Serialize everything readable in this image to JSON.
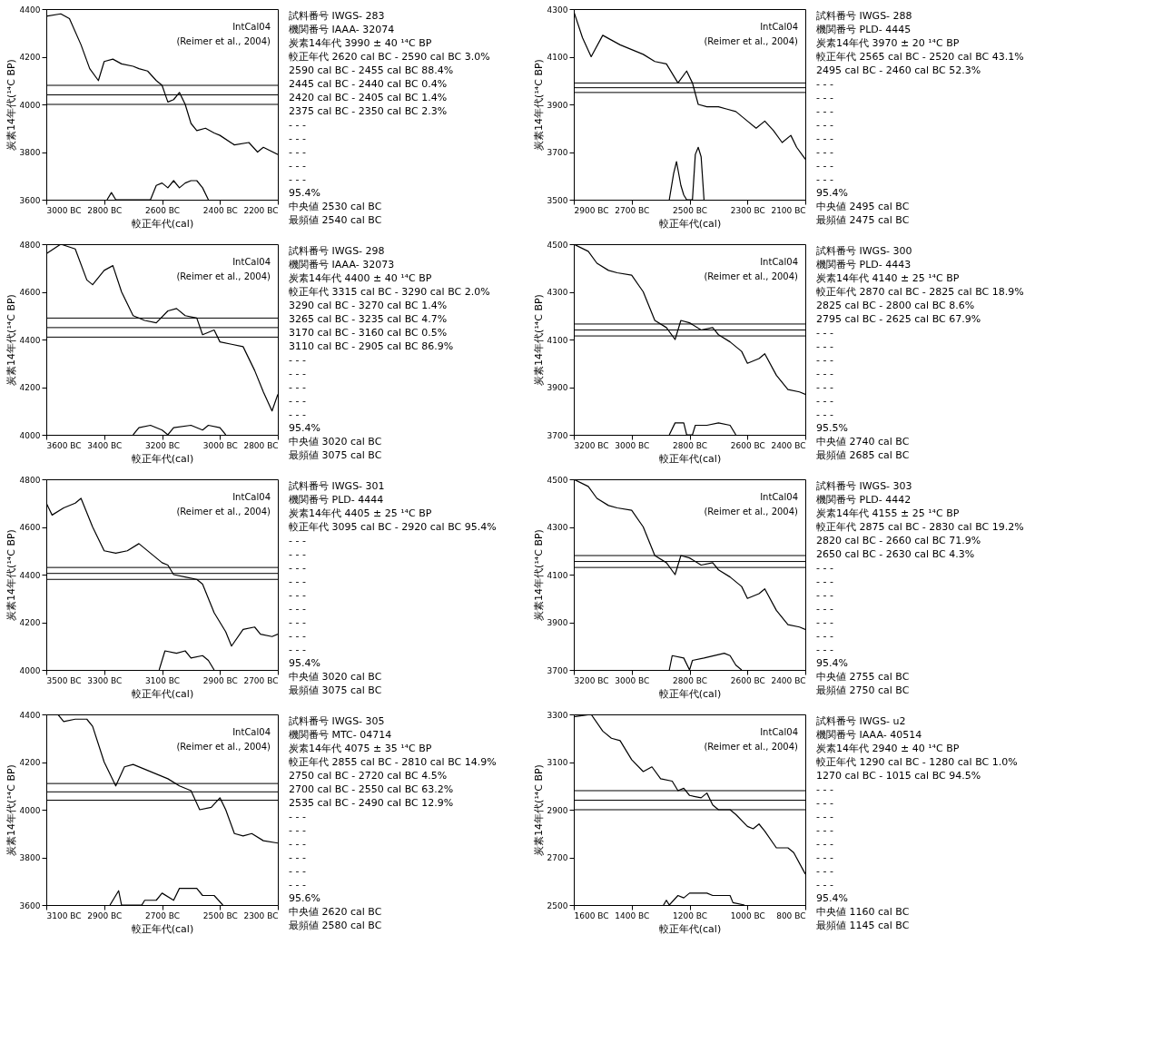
{
  "chart_data": [
    {
      "type": "line",
      "xlabel": "較正年代(cal)",
      "ylabel": "炭素14年代(¹⁴C BP)",
      "annotations": [
        "IntCal04",
        "(Reimer et al., 2004)"
      ],
      "grid": false,
      "xlim": [
        -3000,
        -2200
      ],
      "xticks": [
        {
          "value": -3000,
          "label": "3000 BC"
        },
        {
          "value": -2800,
          "label": "2800 BC"
        },
        {
          "value": -2600,
          "label": "2600 BC"
        },
        {
          "value": -2400,
          "label": "2400 BC"
        },
        {
          "value": -2200,
          "label": "2200 BC"
        }
      ],
      "ylim": [
        3600,
        4400
      ],
      "yticks": [
        3600,
        3800,
        4000,
        4200,
        4400
      ],
      "ref_lines": [
        {
          "axis": "y",
          "value": 4080
        },
        {
          "axis": "y",
          "value": 4040
        },
        {
          "axis": "y",
          "value": 4000
        }
      ],
      "series": [
        {
          "color": "#000000",
          "x": [
            -3000,
            -2950,
            -2920,
            -2880,
            -2850,
            -2820,
            -2800,
            -2770,
            -2740,
            -2700,
            -2680,
            -2650,
            -2620,
            -2600,
            -2580,
            -2560,
            -2540,
            -2520,
            -2500,
            -2480,
            -2450,
            -2420,
            -2400,
            -2350,
            -2300,
            -2270,
            -2250,
            -2200
          ],
          "values": [
            4370,
            4380,
            4360,
            4250,
            4150,
            4100,
            4180,
            4190,
            4170,
            4160,
            4150,
            4140,
            4100,
            4080,
            4010,
            4020,
            4050,
            4000,
            3920,
            3890,
            3900,
            3880,
            3870,
            3830,
            3840,
            3800,
            3820,
            3790
          ]
        },
        {
          "color": "#000000",
          "x": [
            -2790,
            -2775,
            -2760,
            -2640,
            -2620,
            -2600,
            -2580,
            -2560,
            -2540,
            -2520,
            -2500,
            -2480,
            -2460,
            -2440
          ],
          "values": [
            3600,
            3630,
            3600,
            3600,
            3660,
            3670,
            3650,
            3680,
            3650,
            3670,
            3680,
            3680,
            3650,
            3600
          ]
        }
      ]
    },
    {
      "type": "other",
      "annotations": [
        "試料番号 IWGS- 283",
        "機関番号 IAAA- 32074",
        "炭素14年代 3990 ± 40 ¹⁴C BP",
        "較正年代 2620 cal BC - 2590 cal BC 3.0%",
        "2590 cal BC - 2455 cal BC 88.4%",
        "2445 cal BC - 2440 cal BC 0.4%",
        "2420 cal BC - 2405 cal BC 1.4%",
        "2375 cal BC - 2350 cal BC 2.3%",
        "- - -",
        "- - -",
        "- - -",
        "- - -",
        "- - -",
        "95.4%",
        "中央値 2530 cal BC",
        "最頻値 2540 cal BC"
      ]
    },
    {
      "type": "line",
      "xlabel": "較正年代(cal)",
      "ylabel": "炭素14年代(¹⁴C BP)",
      "annotations": [
        "IntCal04",
        "(Reimer et al., 2004)"
      ],
      "grid": false,
      "xlim": [
        -2900,
        -2100
      ],
      "xticks": [
        {
          "value": -2900,
          "label": "2900 BC"
        },
        {
          "value": -2700,
          "label": "2700 BC"
        },
        {
          "value": -2500,
          "label": "2500 BC"
        },
        {
          "value": -2300,
          "label": "2300 BC"
        },
        {
          "value": -2100,
          "label": "2100 BC"
        }
      ],
      "ylim": [
        3500,
        4300
      ],
      "yticks": [
        3500,
        3700,
        3900,
        4100,
        4300
      ],
      "ref_lines": [
        {
          "axis": "y",
          "value": 3990
        },
        {
          "axis": "y",
          "value": 3970
        },
        {
          "axis": "y",
          "value": 3950
        }
      ],
      "series": [
        {
          "color": "#000000",
          "x": [
            -2900,
            -2870,
            -2840,
            -2800,
            -2770,
            -2740,
            -2700,
            -2660,
            -2620,
            -2580,
            -2540,
            -2510,
            -2490,
            -2470,
            -2440,
            -2400,
            -2370,
            -2340,
            -2300,
            -2270,
            -2240,
            -2210,
            -2180,
            -2150,
            -2130,
            -2100
          ],
          "values": [
            4290,
            4180,
            4100,
            4190,
            4170,
            4150,
            4130,
            4110,
            4080,
            4070,
            3990,
            4040,
            3990,
            3900,
            3890,
            3890,
            3880,
            3870,
            3830,
            3800,
            3830,
            3790,
            3740,
            3770,
            3720,
            3670
          ]
        },
        {
          "color": "#000000",
          "x": [
            -2570,
            -2555,
            -2545,
            -2530,
            -2520,
            -2510,
            -2490,
            -2480,
            -2470,
            -2460,
            -2450
          ],
          "values": [
            3500,
            3610,
            3660,
            3560,
            3520,
            3500,
            3500,
            3690,
            3720,
            3680,
            3500
          ]
        }
      ]
    },
    {
      "type": "other",
      "annotations": [
        "試料番号 IWGS- 288",
        "機関番号 PLD- 4445",
        "炭素14年代 3970 ± 20 ¹⁴C BP",
        "較正年代 2565 cal BC - 2520 cal BC 43.1%",
        "2495 cal BC - 2460 cal BC 52.3%",
        "- - -",
        "- - -",
        "- - -",
        "- - -",
        "- - -",
        "- - -",
        "- - -",
        "- - -",
        "95.4%",
        "中央値 2495 cal BC",
        "最頻値 2475 cal BC"
      ]
    },
    {
      "type": "line",
      "xlabel": "較正年代(cal)",
      "ylabel": "炭素14年代(¹⁴C BP)",
      "annotations": [
        "IntCal04",
        "(Reimer et al., 2004)"
      ],
      "grid": false,
      "xlim": [
        -3600,
        -2800
      ],
      "xticks": [
        {
          "value": -3600,
          "label": "3600 BC"
        },
        {
          "value": -3400,
          "label": "3400 BC"
        },
        {
          "value": -3200,
          "label": "3200 BC"
        },
        {
          "value": -3000,
          "label": "3000 BC"
        },
        {
          "value": -2800,
          "label": "2800 BC"
        }
      ],
      "ylim": [
        4000,
        4800
      ],
      "yticks": [
        4000,
        4200,
        4400,
        4600,
        4800
      ],
      "ref_lines": [
        {
          "axis": "y",
          "value": 4490
        },
        {
          "axis": "y",
          "value": 4450
        },
        {
          "axis": "y",
          "value": 4410
        }
      ],
      "series": [
        {
          "color": "#000000",
          "x": [
            -3600,
            -3550,
            -3500,
            -3460,
            -3440,
            -3400,
            -3370,
            -3340,
            -3300,
            -3260,
            -3220,
            -3180,
            -3150,
            -3120,
            -3080,
            -3060,
            -3020,
            -3000,
            -2960,
            -2920,
            -2880,
            -2850,
            -2820,
            -2800
          ],
          "values": [
            4760,
            4800,
            4780,
            4650,
            4630,
            4690,
            4710,
            4600,
            4500,
            4480,
            4470,
            4520,
            4530,
            4500,
            4490,
            4420,
            4440,
            4390,
            4380,
            4370,
            4270,
            4180,
            4100,
            4170
          ]
        },
        {
          "color": "#000000",
          "x": [
            -3300,
            -3280,
            -3240,
            -3200,
            -3180,
            -3160,
            -3100,
            -3060,
            -3040,
            -3000,
            -2980
          ],
          "values": [
            4000,
            4030,
            4040,
            4020,
            4000,
            4030,
            4040,
            4020,
            4040,
            4030,
            4000
          ]
        }
      ]
    },
    {
      "type": "other",
      "annotations": [
        "試料番号 IWGS- 298",
        "機関番号 IAAA- 32073",
        "炭素14年代 4400 ± 40 ¹⁴C BP",
        "較正年代 3315 cal BC - 3290 cal BC 2.0%",
        "3290 cal BC - 3270 cal BC 1.4%",
        "3265 cal BC - 3235 cal BC 4.7%",
        "3170 cal BC - 3160 cal BC 0.5%",
        "3110 cal BC - 2905 cal BC 86.9%",
        "- - -",
        "- - -",
        "- - -",
        "- - -",
        "- - -",
        "95.4%",
        "中央値 3020 cal BC",
        "最頻値 3075 cal BC"
      ]
    },
    {
      "type": "line",
      "xlabel": "較正年代(cal)",
      "ylabel": "炭素14年代(¹⁴C BP)",
      "annotations": [
        "IntCal04",
        "(Reimer et al., 2004)"
      ],
      "grid": false,
      "xlim": [
        -3200,
        -2400
      ],
      "xticks": [
        {
          "value": -3200,
          "label": "3200 BC"
        },
        {
          "value": -3000,
          "label": "3000 BC"
        },
        {
          "value": -2800,
          "label": "2800 BC"
        },
        {
          "value": -2600,
          "label": "2600 BC"
        },
        {
          "value": -2400,
          "label": "2400 BC"
        }
      ],
      "ylim": [
        3700,
        4500
      ],
      "yticks": [
        3700,
        3900,
        4100,
        4300,
        4500
      ],
      "ref_lines": [
        {
          "axis": "y",
          "value": 4165
        },
        {
          "axis": "y",
          "value": 4140
        },
        {
          "axis": "y",
          "value": 4115
        }
      ],
      "series": [
        {
          "color": "#000000",
          "x": [
            -3200,
            -3150,
            -3120,
            -3080,
            -3050,
            -3000,
            -2960,
            -2920,
            -2880,
            -2850,
            -2830,
            -2800,
            -2760,
            -2720,
            -2700,
            -2660,
            -2620,
            -2600,
            -2560,
            -2540,
            -2500,
            -2460,
            -2420,
            -2400
          ],
          "values": [
            4500,
            4470,
            4420,
            4390,
            4380,
            4370,
            4300,
            4180,
            4150,
            4100,
            4180,
            4170,
            4140,
            4150,
            4120,
            4090,
            4050,
            4000,
            4020,
            4040,
            3950,
            3890,
            3880,
            3870
          ]
        },
        {
          "color": "#000000",
          "x": [
            -2870,
            -2850,
            -2820,
            -2810,
            -2790,
            -2780,
            -2740,
            -2700,
            -2660,
            -2640
          ],
          "values": [
            3700,
            3750,
            3750,
            3700,
            3700,
            3740,
            3740,
            3750,
            3740,
            3700
          ]
        }
      ]
    },
    {
      "type": "other",
      "annotations": [
        "試料番号 IWGS- 300",
        "機関番号 PLD- 4443",
        "炭素14年代 4140 ± 25 ¹⁴C BP",
        "較正年代 2870 cal BC - 2825 cal BC 18.9%",
        "2825 cal BC - 2800 cal BC 8.6%",
        "2795 cal BC - 2625 cal BC 67.9%",
        "- - -",
        "- - -",
        "- - -",
        "- - -",
        "- - -",
        "- - -",
        "- - -",
        "95.5%",
        "中央値 2740 cal BC",
        "最頻値 2685 cal BC"
      ]
    },
    {
      "type": "line",
      "xlabel": "較正年代(cal)",
      "ylabel": "炭素14年代(¹⁴C BP)",
      "annotations": [
        "IntCal04",
        "(Reimer et al., 2004)"
      ],
      "grid": false,
      "xlim": [
        -3500,
        -2700
      ],
      "xticks": [
        {
          "value": -3500,
          "label": "3500 BC"
        },
        {
          "value": -3300,
          "label": "3300 BC"
        },
        {
          "value": -3100,
          "label": "3100 BC"
        },
        {
          "value": -2900,
          "label": "2900 BC"
        },
        {
          "value": -2700,
          "label": "2700 BC"
        }
      ],
      "ylim": [
        4000,
        4800
      ],
      "yticks": [
        4000,
        4200,
        4400,
        4600,
        4800
      ],
      "ref_lines": [
        {
          "axis": "y",
          "value": 4430
        },
        {
          "axis": "y",
          "value": 4405
        },
        {
          "axis": "y",
          "value": 4380
        }
      ],
      "series": [
        {
          "color": "#000000",
          "x": [
            -3500,
            -3480,
            -3440,
            -3400,
            -3380,
            -3340,
            -3300,
            -3260,
            -3220,
            -3180,
            -3140,
            -3100,
            -3080,
            -3060,
            -3020,
            -2980,
            -2960,
            -2920,
            -2880,
            -2860,
            -2820,
            -2780,
            -2760,
            -2720,
            -2700
          ],
          "values": [
            4700,
            4650,
            4680,
            4700,
            4720,
            4600,
            4500,
            4490,
            4500,
            4530,
            4490,
            4450,
            4440,
            4400,
            4390,
            4380,
            4360,
            4240,
            4160,
            4100,
            4170,
            4180,
            4150,
            4140,
            4150
          ]
        },
        {
          "color": "#000000",
          "x": [
            -3110,
            -3090,
            -3050,
            -3020,
            -3000,
            -2960,
            -2940,
            -2920
          ],
          "values": [
            4000,
            4080,
            4070,
            4080,
            4050,
            4060,
            4040,
            4000
          ]
        }
      ]
    },
    {
      "type": "other",
      "annotations": [
        "試料番号 IWGS- 301",
        "機関番号 PLD- 4444",
        "炭素14年代 4405 ± 25 ¹⁴C BP",
        "較正年代 3095 cal BC - 2920 cal BC 95.4%",
        "- - -",
        "- - -",
        "- - -",
        "- - -",
        "- - -",
        "- - -",
        "- - -",
        "- - -",
        "- - -",
        "95.4%",
        "中央値 3020 cal BC",
        "最頻値 3075 cal BC"
      ]
    },
    {
      "type": "line",
      "xlabel": "較正年代(cal)",
      "ylabel": "炭素14年代(¹⁴C BP)",
      "annotations": [
        "IntCal04",
        "(Reimer et al., 2004)"
      ],
      "grid": false,
      "xlim": [
        -3200,
        -2400
      ],
      "xticks": [
        {
          "value": -3200,
          "label": "3200 BC"
        },
        {
          "value": -3000,
          "label": "3000 BC"
        },
        {
          "value": -2800,
          "label": "2800 BC"
        },
        {
          "value": -2600,
          "label": "2600 BC"
        },
        {
          "value": -2400,
          "label": "2400 BC"
        }
      ],
      "ylim": [
        3700,
        4500
      ],
      "yticks": [
        3700,
        3900,
        4100,
        4300,
        4500
      ],
      "ref_lines": [
        {
          "axis": "y",
          "value": 4180
        },
        {
          "axis": "y",
          "value": 4155
        },
        {
          "axis": "y",
          "value": 4130
        }
      ],
      "series": [
        {
          "color": "#000000",
          "x": [
            -3200,
            -3150,
            -3120,
            -3080,
            -3050,
            -3000,
            -2960,
            -2920,
            -2880,
            -2850,
            -2830,
            -2800,
            -2760,
            -2720,
            -2700,
            -2660,
            -2620,
            -2600,
            -2560,
            -2540,
            -2500,
            -2460,
            -2420,
            -2400
          ],
          "values": [
            4500,
            4470,
            4420,
            4390,
            4380,
            4370,
            4300,
            4180,
            4150,
            4100,
            4180,
            4170,
            4140,
            4150,
            4120,
            4090,
            4050,
            4000,
            4020,
            4040,
            3950,
            3890,
            3880,
            3870
          ]
        },
        {
          "color": "#000000",
          "x": [
            -2870,
            -2860,
            -2820,
            -2800,
            -2790,
            -2750,
            -2680,
            -2660,
            -2640,
            -2620
          ],
          "values": [
            3700,
            3760,
            3750,
            3700,
            3740,
            3750,
            3770,
            3760,
            3720,
            3700
          ]
        }
      ]
    },
    {
      "type": "other",
      "annotations": [
        "試料番号 IWGS- 303",
        "機関番号 PLD- 4442",
        "炭素14年代 4155 ± 25 ¹⁴C BP",
        "較正年代 2875 cal BC - 2830 cal BC 19.2%",
        "2820 cal BC - 2660 cal BC 71.9%",
        "2650 cal BC - 2630 cal BC 4.3%",
        "- - -",
        "- - -",
        "- - -",
        "- - -",
        "- - -",
        "- - -",
        "- - -",
        "95.4%",
        "中央値 2755 cal BC",
        "最頻値 2750 cal BC"
      ]
    },
    {
      "type": "line",
      "xlabel": "較正年代(cal)",
      "ylabel": "炭素14年代(¹⁴C BP)",
      "annotations": [
        "IntCal04",
        "(Reimer et al., 2004)"
      ],
      "grid": false,
      "xlim": [
        -3100,
        -2300
      ],
      "xticks": [
        {
          "value": -3100,
          "label": "3100 BC"
        },
        {
          "value": -2900,
          "label": "2900 BC"
        },
        {
          "value": -2700,
          "label": "2700 BC"
        },
        {
          "value": -2500,
          "label": "2500 BC"
        },
        {
          "value": -2300,
          "label": "2300 BC"
        }
      ],
      "ylim": [
        3600,
        4400
      ],
      "yticks": [
        3600,
        3800,
        4000,
        4200,
        4400
      ],
      "ref_lines": [
        {
          "axis": "y",
          "value": 4110
        },
        {
          "axis": "y",
          "value": 4075
        },
        {
          "axis": "y",
          "value": 4040
        }
      ],
      "series": [
        {
          "color": "#000000",
          "x": [
            -3060,
            -3040,
            -3000,
            -2960,
            -2940,
            -2900,
            -2860,
            -2830,
            -2800,
            -2760,
            -2720,
            -2680,
            -2640,
            -2600,
            -2570,
            -2530,
            -2500,
            -2480,
            -2450,
            -2420,
            -2390,
            -2350,
            -2300
          ],
          "values": [
            4400,
            4370,
            4380,
            4380,
            4350,
            4200,
            4100,
            4180,
            4190,
            4170,
            4150,
            4130,
            4100,
            4080,
            4000,
            4010,
            4050,
            4000,
            3900,
            3890,
            3900,
            3870,
            3860
          ]
        },
        {
          "color": "#000000",
          "x": [
            -2880,
            -2860,
            -2850,
            -2840,
            -2770,
            -2760,
            -2720,
            -2700,
            -2660,
            -2640,
            -2580,
            -2560,
            -2520,
            -2490
          ],
          "values": [
            3600,
            3640,
            3660,
            3600,
            3600,
            3620,
            3620,
            3650,
            3620,
            3670,
            3670,
            3640,
            3640,
            3600
          ]
        }
      ]
    },
    {
      "type": "other",
      "annotations": [
        "試料番号 IWGS- 305",
        "機関番号 MTC- 04714",
        "炭素14年代 4075 ± 35 ¹⁴C BP",
        "較正年代 2855 cal BC - 2810 cal BC 14.9%",
        "2750 cal BC - 2720 cal BC 4.5%",
        "2700 cal BC - 2550 cal BC 63.2%",
        "2535 cal BC - 2490 cal BC 12.9%",
        "- - -",
        "- - -",
        "- - -",
        "- - -",
        "- - -",
        "- - -",
        "95.6%",
        "中央値 2620 cal BC",
        "最頻値 2580 cal BC"
      ]
    },
    {
      "type": "line",
      "xlabel": "較正年代(cal)",
      "ylabel": "炭素14年代(¹⁴C BP)",
      "annotations": [
        "IntCal04",
        "(Reimer et al., 2004)"
      ],
      "grid": false,
      "xlim": [
        -1600,
        -800
      ],
      "xticks": [
        {
          "value": -1600,
          "label": "1600 BC"
        },
        {
          "value": -1400,
          "label": "1400 BC"
        },
        {
          "value": -1200,
          "label": "1200 BC"
        },
        {
          "value": -1000,
          "label": "1000 BC"
        },
        {
          "value": -800,
          "label": "800 BC"
        }
      ],
      "ylim": [
        2500,
        3300
      ],
      "yticks": [
        2500,
        2700,
        2900,
        3100,
        3300
      ],
      "ref_lines": [
        {
          "axis": "y",
          "value": 2980
        },
        {
          "axis": "y",
          "value": 2940
        },
        {
          "axis": "y",
          "value": 2900
        }
      ],
      "series": [
        {
          "color": "#000000",
          "x": [
            -1600,
            -1540,
            -1500,
            -1470,
            -1440,
            -1400,
            -1360,
            -1330,
            -1300,
            -1260,
            -1240,
            -1220,
            -1200,
            -1160,
            -1140,
            -1120,
            -1100,
            -1060,
            -1040,
            -1000,
            -980,
            -960,
            -940,
            -900,
            -860,
            -840,
            -800
          ],
          "values": [
            3290,
            3300,
            3230,
            3200,
            3190,
            3110,
            3060,
            3080,
            3030,
            3020,
            2980,
            2990,
            2960,
            2950,
            2970,
            2920,
            2900,
            2900,
            2880,
            2830,
            2820,
            2840,
            2810,
            2740,
            2740,
            2720,
            2630
          ]
        },
        {
          "color": "#000000",
          "x": [
            -1290,
            -1280,
            -1270,
            -1240,
            -1220,
            -1200,
            -1140,
            -1120,
            -1060,
            -1050,
            -1010
          ],
          "values": [
            2500,
            2520,
            2500,
            2540,
            2530,
            2550,
            2550,
            2540,
            2540,
            2510,
            2500
          ]
        }
      ]
    },
    {
      "type": "other",
      "annotations": [
        "試料番号 IWGS- u2",
        "機関番号 IAAA- 40514",
        "炭素14年代 2940 ± 40 ¹⁴C BP",
        "較正年代 1290 cal BC - 1280 cal BC 1.0%",
        "1270 cal BC - 1015 cal BC 94.5%",
        "- - -",
        "- - -",
        "- - -",
        "- - -",
        "- - -",
        "- - -",
        "- - -",
        "- - -",
        "95.4%",
        "中央値 1160 cal BC",
        "最頻値 1145 cal BC"
      ]
    }
  ]
}
